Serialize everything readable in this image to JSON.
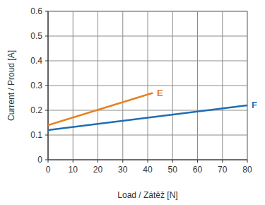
{
  "chart_data": {
    "type": "line",
    "x_label": "Load / Zátěž [N]",
    "y_label": "Current / Proud [A]",
    "series": [
      {
        "name": "E",
        "color": "#e8801e",
        "x": [
          0,
          42
        ],
        "values": [
          0.14,
          0.27
        ]
      },
      {
        "name": "F",
        "color": "#1f6db5",
        "x": [
          0,
          80
        ],
        "values": [
          0.12,
          0.22
        ]
      }
    ],
    "xlim": [
      0,
      80
    ],
    "xticks": [
      0,
      10,
      20,
      30,
      40,
      50,
      60,
      70,
      80
    ],
    "ylim": [
      0,
      0.6
    ],
    "yticks": [
      0,
      0.1,
      0.2,
      0.3,
      0.4,
      0.5,
      0.6
    ],
    "grid": true
  }
}
